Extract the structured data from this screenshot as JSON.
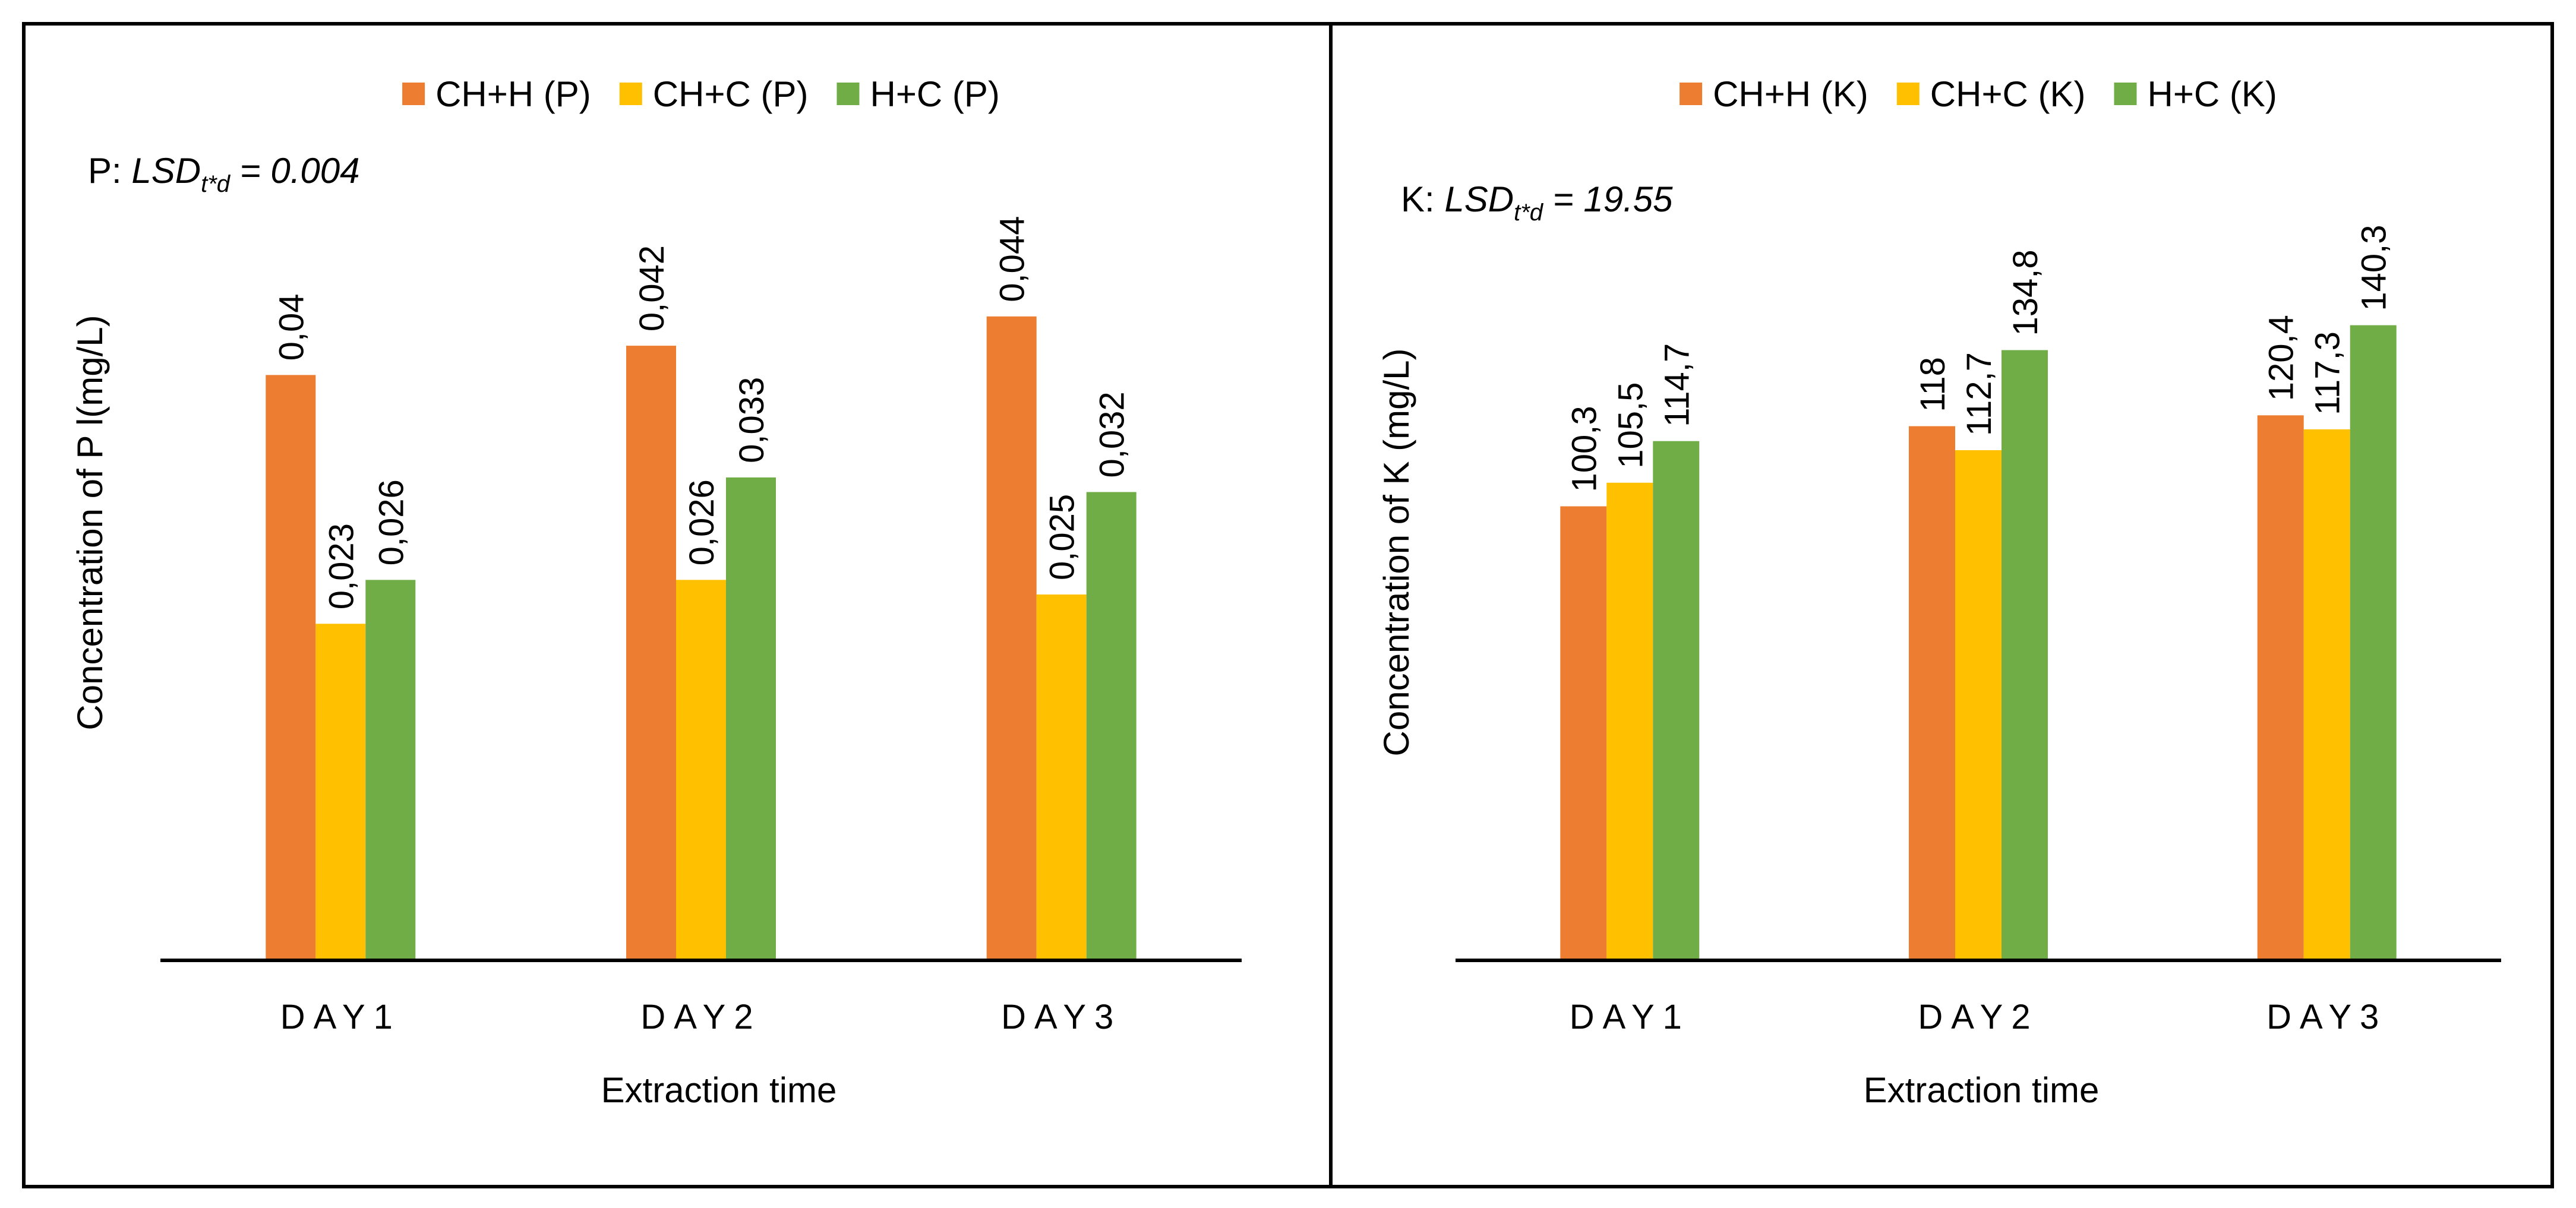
{
  "chart_data": [
    {
      "type": "bar",
      "categories": [
        "DAY1",
        "DAY2",
        "DAY3"
      ],
      "series": [
        {
          "name": "CH+H (P)",
          "color": "#ED7D31",
          "values": [
            0.04,
            0.042,
            0.044
          ],
          "labels": [
            "0,04",
            "0,042",
            "0,044"
          ]
        },
        {
          "name": "CH+C (P)",
          "color": "#FFC000",
          "values": [
            0.023,
            0.026,
            0.025
          ],
          "labels": [
            "0,023",
            "0,026",
            "0,025"
          ]
        },
        {
          "name": "H+C (P)",
          "color": "#70AD47",
          "values": [
            0.026,
            0.033,
            0.032
          ],
          "labels": [
            "0,026",
            "0,033",
            "0,032"
          ]
        }
      ],
      "annotation": {
        "prefix": "P: ",
        "lsd": "LSD",
        "sub": "t*d",
        "suffix": " = 0.004"
      },
      "xlabel": "Extraction time",
      "ylabel": "Concentration of P l(mg/L)",
      "ylim": [
        0,
        0.05
      ],
      "grid": false,
      "legend": "top-center"
    },
    {
      "type": "bar",
      "categories": [
        "DAY1",
        "DAY2",
        "DAY3"
      ],
      "series": [
        {
          "name": "CH+H (K)",
          "color": "#ED7D31",
          "values": [
            100.3,
            118,
            120.4
          ],
          "labels": [
            "100,3",
            "118",
            "120,4"
          ]
        },
        {
          "name": "CH+C (K)",
          "color": "#FFC000",
          "values": [
            105.5,
            112.7,
            117.3
          ],
          "labels": [
            "105,5",
            "112,7",
            "117,3"
          ]
        },
        {
          "name": "H+C (K)",
          "color": "#70AD47",
          "values": [
            114.7,
            134.8,
            140.3
          ],
          "labels": [
            "114,7",
            "134,8",
            "140,3"
          ]
        }
      ],
      "annotation": {
        "prefix": "K: ",
        "lsd": "LSD",
        "sub": "t*d",
        "suffix": " = 19.55"
      },
      "xlabel": "Extraction time",
      "ylabel": "Concentration of K  (mg/L)",
      "ylim": [
        0,
        169.5
      ],
      "grid": false,
      "legend": "top-center"
    }
  ]
}
